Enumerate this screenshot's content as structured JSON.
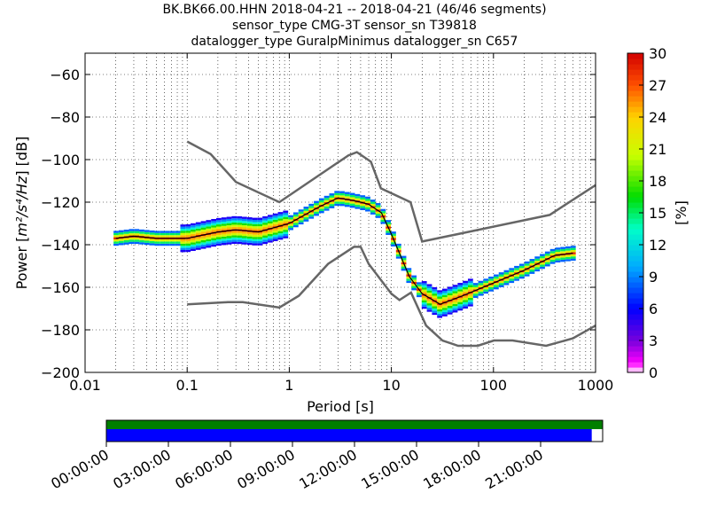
{
  "title_lines": [
    "BK.BK66.00.HHN   2018-04-21 -- 2018-04-21  (46/46 segments)",
    "sensor_type CMG-3T sensor_sn T39818",
    "datalogger_type GuralpMinimus datalogger_sn C657"
  ],
  "chart_data": {
    "type": "heatmap",
    "xlabel": "Period [s]",
    "ylabel_prefix": "Power [",
    "ylabel_math": "m²/s⁴/Hz",
    "ylabel_suffix": "] [dB]",
    "xscale": "log",
    "xlim": [
      0.01,
      1000
    ],
    "ylim": [
      -200,
      -50
    ],
    "xticks": [
      0.01,
      0.1,
      1,
      10,
      100,
      1000
    ],
    "xtick_labels": [
      "0.01",
      "0.1",
      "1",
      "10",
      "100",
      "1000"
    ],
    "yticks": [
      -200,
      -180,
      -160,
      -140,
      -120,
      -100,
      -80,
      -60
    ],
    "ytick_labels": [
      "−200",
      "−180",
      "−160",
      "−140",
      "−120",
      "−100",
      "−80",
      "−60"
    ],
    "grid": true,
    "colorbar": {
      "label": "[%]",
      "range": [
        0,
        30
      ],
      "ticks": [
        0,
        3,
        6,
        9,
        12,
        15,
        18,
        21,
        24,
        27,
        30
      ],
      "tick_labels": [
        "0",
        "3",
        "6",
        "9",
        "12",
        "15",
        "18",
        "21",
        "24",
        "27",
        "30"
      ]
    },
    "noise_model_high": {
      "period": [
        0.1,
        0.17,
        0.3,
        0.8,
        3.8,
        4.6,
        6.3,
        7.9,
        15.4,
        20,
        354.8,
        1000
      ],
      "power": [
        -91.5,
        -97.4,
        -110.5,
        -120.0,
        -98.0,
        -96.5,
        -101.0,
        -113.5,
        -120.0,
        -138.5,
        -126.0,
        -112.0
      ]
    },
    "noise_model_low": {
      "period": [
        0.1,
        0.25,
        0.35,
        0.8,
        1.24,
        2.4,
        4.3,
        5.0,
        6.0,
        10.0,
        12.0,
        15.6,
        21.9,
        31.6,
        45.0,
        70.0,
        101.0,
        154.0,
        328.0,
        600.0,
        1000.0
      ],
      "power": [
        -168.0,
        -167.0,
        -167.0,
        -169.5,
        -164.0,
        -149.0,
        -141.0,
        -141.0,
        -149.0,
        -163.0,
        -166.0,
        -162.5,
        -178.0,
        -185.0,
        -187.5,
        -187.5,
        -185.0,
        -185.0,
        -187.5,
        -184.0,
        -178.0
      ]
    },
    "mode_line": {
      "period": [
        0.02,
        0.03,
        0.05,
        0.1,
        0.2,
        0.3,
        0.5,
        1.0,
        2.0,
        3.0,
        4.0,
        5.0,
        6.0,
        8.0,
        10.0,
        15.0,
        20.0,
        30.0,
        50.0,
        100.0,
        200.0,
        400.0,
        600.0
      ],
      "power": [
        -137,
        -136,
        -137,
        -137,
        -134,
        -133,
        -134,
        -130,
        -122,
        -118,
        -119,
        -120,
        -121,
        -125,
        -135,
        -155,
        -163,
        -168,
        -164,
        -158,
        -152,
        -145,
        -144
      ]
    }
  },
  "segments_bar": {
    "colors": {
      "top": "#007f00",
      "bottom": "#0000ff"
    },
    "covered_fraction": 0.978,
    "time_labels": [
      "00:00:00",
      "03:00:00",
      "06:00:00",
      "09:00:00",
      "12:00:00",
      "15:00:00",
      "18:00:00",
      "21:00:00"
    ]
  }
}
